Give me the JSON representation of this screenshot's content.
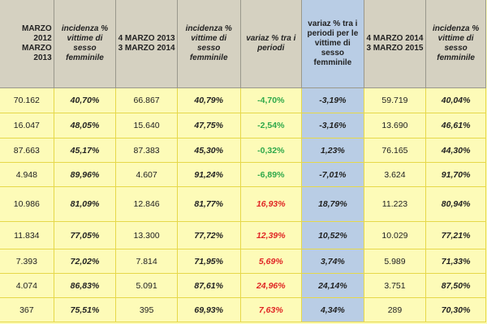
{
  "headers": [
    "MARZO 2012 MARZO 2013",
    "incidenza % vittime di sesso femminile",
    "4 MARZO 2013 3 MARZO 2014",
    "incidenza % vittime di sesso femminile",
    "variaz % tra i periodi",
    "variaz % tra i periodi per le vittime di sesso femminile",
    "4 MARZO 2014 3 MARZO 2015",
    "incidenza % vittime di sesso femminile"
  ],
  "rows": [
    [
      "70.162",
      "40,70%",
      "66.867",
      "40,79%",
      "-4,70%",
      "-3,19%",
      "59.719",
      "40,04%"
    ],
    [
      "16.047",
      "48,05%",
      "15.640",
      "47,75%",
      "-2,54%",
      "-3,16%",
      "13.690",
      "46,61%"
    ],
    [
      "87.663",
      "45,17%",
      "87.383",
      "45,30%",
      "-0,32%",
      "1,23%",
      "76.165",
      "44,30%"
    ],
    [
      "4.948",
      "89,96%",
      "4.607",
      "91,24%",
      "-6,89%",
      "-7,01%",
      "3.624",
      "91,70%"
    ],
    [
      "10.986",
      "81,09%",
      "12.846",
      "81,77%",
      "16,93%",
      "18,79%",
      "11.223",
      "80,94%"
    ],
    [
      "11.834",
      "77,05%",
      "13.300",
      "77,72%",
      "12,39%",
      "10,52%",
      "10.029",
      "77,21%"
    ],
    [
      "7.393",
      "72,02%",
      "7.814",
      "71,95%",
      "5,69%",
      "3,74%",
      "5.989",
      "71,33%"
    ],
    [
      "4.074",
      "86,83%",
      "5.091",
      "87,61%",
      "24,96%",
      "24,14%",
      "3.751",
      "87,50%"
    ],
    [
      "367",
      "75,51%",
      "395",
      "69,93%",
      "7,63%",
      "4,34%",
      "289",
      "70,30%"
    ]
  ],
  "colors": {
    "header_bg": "#d5d1c1",
    "row_bg": "#fdfbb8",
    "highlight_column": "#b9cde5",
    "negative_change": "#2ea84a",
    "positive_change": "#e02424"
  }
}
